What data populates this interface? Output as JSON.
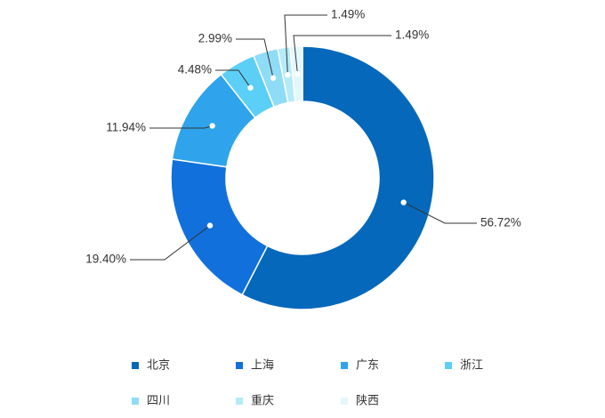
{
  "chart_data": {
    "type": "pie",
    "style": "donut",
    "unit": "%",
    "categories": [
      "北京",
      "上海",
      "广东",
      "浙江",
      "四川",
      "重庆",
      "陕西"
    ],
    "values": [
      56.72,
      19.4,
      11.94,
      4.48,
      2.99,
      1.49,
      1.49
    ],
    "labels": [
      "56.72%",
      "19.40%",
      "11.94%",
      "4.48%",
      "2.99%",
      "1.49%",
      "1.49%"
    ],
    "colors": [
      "#0568bb",
      "#1170dc",
      "#2fa4ec",
      "#5ccff7",
      "#8fdcf7",
      "#b5ebf9",
      "#e3f7fd"
    ],
    "legend_position": "bottom",
    "start_angle": "top",
    "direction": "clockwise"
  }
}
